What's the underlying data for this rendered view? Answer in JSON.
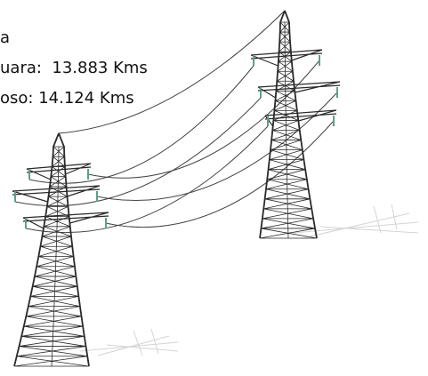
{
  "caption": {
    "lines": [
      "a",
      "uara:  13.883 Kms",
      "oso: 14.124 Kms"
    ]
  }
}
